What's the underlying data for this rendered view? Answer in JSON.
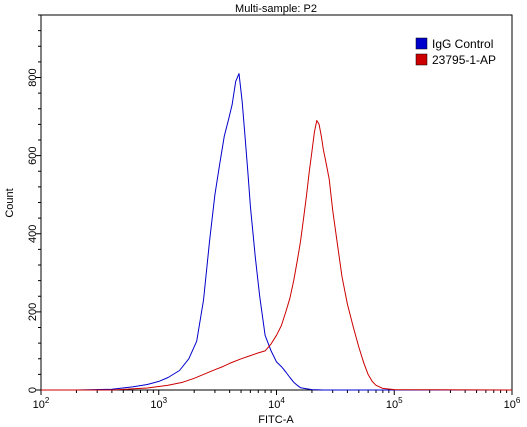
{
  "chart_data": {
    "type": "line",
    "title": "Multi-sample: P2",
    "xlabel": "FITC-A",
    "ylabel": "Count",
    "x_scale": "log",
    "xlim": [
      100,
      1000000
    ],
    "ylim": [
      0,
      960
    ],
    "x_ticks": [
      {
        "value": 100,
        "base": "10",
        "exp": "2"
      },
      {
        "value": 1000,
        "base": "10",
        "exp": "3"
      },
      {
        "value": 10000,
        "base": "10",
        "exp": "4"
      },
      {
        "value": 100000,
        "base": "10",
        "exp": "5"
      },
      {
        "value": 1000000,
        "base": "10",
        "exp": "6"
      }
    ],
    "y_ticks": [
      0,
      200,
      400,
      600,
      800
    ],
    "legend_position": "top-right",
    "series": [
      {
        "name": "IgG Control",
        "color": "#0000cc",
        "x": [
          100,
          200,
          400,
          600,
          800,
          1000,
          1200,
          1500,
          1800,
          2100,
          2400,
          2700,
          3000,
          3300,
          3600,
          3900,
          4200,
          4500,
          4800,
          5100,
          5400,
          5700,
          6000,
          6600,
          7200,
          8000,
          9000,
          10000,
          11000,
          12000,
          13000,
          14000,
          15000,
          16000,
          18000,
          20000,
          25000,
          35000,
          60000,
          100000,
          1000000
        ],
        "y": [
          0,
          0,
          2,
          8,
          14,
          22,
          32,
          50,
          80,
          125,
          230,
          380,
          500,
          580,
          650,
          690,
          730,
          790,
          810,
          740,
          650,
          560,
          470,
          340,
          240,
          140,
          100,
          72,
          60,
          46,
          32,
          20,
          12,
          6,
          3,
          1,
          0,
          0,
          0,
          0,
          0
        ]
      },
      {
        "name": "23795-1-AP",
        "color": "#cc0000",
        "x": [
          100,
          400,
          800,
          1200,
          1600,
          2000,
          2500,
          3000,
          3500,
          4000,
          5000,
          6000,
          7000,
          8000,
          9000,
          10000,
          11000,
          12000,
          13000,
          14000,
          15000,
          16000,
          17000,
          18000,
          19000,
          20000,
          21000,
          22000,
          23000,
          24000,
          25000,
          26000,
          28000,
          30000,
          33000,
          36000,
          40000,
          45000,
          50000,
          55000,
          60000,
          65000,
          70000,
          80000,
          100000,
          1000000
        ],
        "y": [
          0,
          0,
          5,
          12,
          20,
          30,
          42,
          52,
          60,
          68,
          80,
          88,
          95,
          100,
          118,
          140,
          165,
          200,
          235,
          280,
          330,
          380,
          440,
          500,
          560,
          610,
          660,
          690,
          680,
          650,
          615,
          590,
          540,
          460,
          370,
          290,
          220,
          160,
          110,
          70,
          40,
          22,
          12,
          4,
          1,
          0
        ]
      }
    ]
  }
}
